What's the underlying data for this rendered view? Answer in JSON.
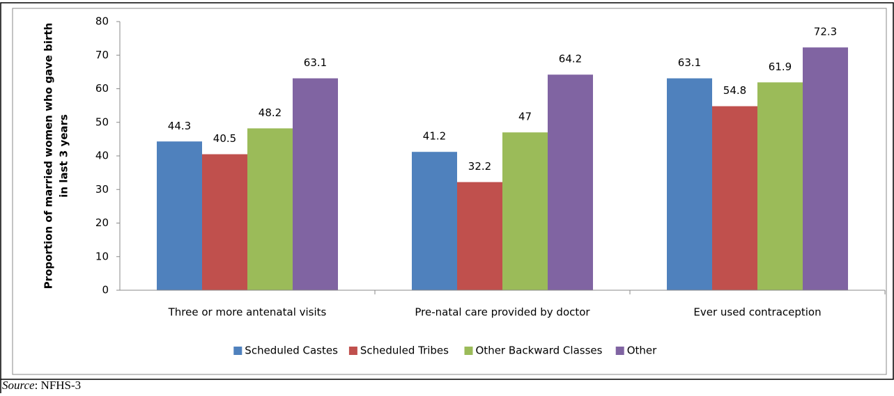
{
  "chart_data": {
    "type": "bar",
    "ylabel": [
      "Proportion of married women who gave birth",
      "in last 3 years"
    ],
    "categories": [
      "Three or more antenatal visits",
      "Pre-natal care provided by doctor",
      "Ever used contraception"
    ],
    "series": [
      {
        "name": "Scheduled Castes",
        "color": "#4f81bd",
        "values": [
          44.3,
          41.2,
          63.1
        ]
      },
      {
        "name": "Scheduled Tribes",
        "color": "#c0504d",
        "values": [
          40.5,
          32.2,
          54.8
        ]
      },
      {
        "name": "Other Backward Classes",
        "color": "#9bbb59",
        "values": [
          48.2,
          47,
          61.9
        ]
      },
      {
        "name": "Other",
        "color": "#8064a2",
        "values": [
          63.1,
          64.2,
          72.3
        ]
      }
    ],
    "ylim": [
      0,
      80
    ],
    "yticks": [
      0,
      10,
      20,
      30,
      40,
      50,
      60,
      70,
      80
    ],
    "legend": "bottom",
    "source_label": "Source",
    "source_text": ": NFHS-3"
  }
}
